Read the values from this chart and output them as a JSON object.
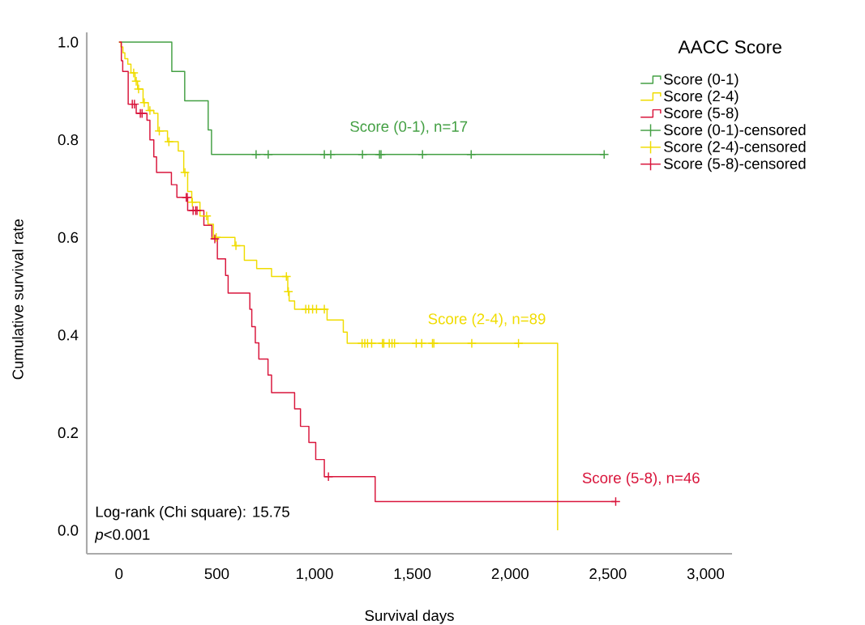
{
  "chart_data": {
    "type": "step",
    "xlabel": "Survival days",
    "ylabel": "Cumulative survival rate",
    "legend_title": "AACC Score",
    "xlim": [
      -165,
      3135
    ],
    "ylim": [
      -0.048,
      1.02
    ],
    "xticks": [
      0,
      500,
      {
        "value": 1000,
        "label": "1,000"
      },
      {
        "value": 1500,
        "label": "1,500"
      },
      {
        "value": 2000,
        "label": "2,000"
      },
      {
        "value": 2500,
        "label": "2,500"
      },
      {
        "value": 3000,
        "label": "3,000"
      }
    ],
    "yticks": [
      {
        "value": 0,
        "label": "0.0"
      },
      0.2,
      0.4,
      0.6,
      0.8,
      {
        "value": 1,
        "label": "1.0"
      }
    ],
    "grid": false,
    "legend": "top right",
    "series": [
      {
        "name": "Score (0-1)",
        "color": "#44a044",
        "x": [
          0,
          270,
          336,
          456,
          473,
          2481
        ],
        "values": [
          1.0,
          0.94,
          0.88,
          0.82,
          0.77,
          0.77
        ]
      },
      {
        "name": "Score (2-4)",
        "color": "#f0dc00",
        "x": [
          0,
          10,
          20,
          30,
          45,
          61,
          82,
          95,
          123,
          150,
          178,
          199,
          248,
          303,
          331,
          351,
          372,
          414,
          455,
          483,
          593,
          641,
          704,
          780,
          863,
          870,
          898,
          1064,
          1147,
          1167,
          2243
        ],
        "values": [
          1.0,
          0.99,
          0.978,
          0.966,
          0.955,
          0.937,
          0.92,
          0.904,
          0.876,
          0.86,
          0.854,
          0.818,
          0.796,
          0.777,
          0.733,
          0.694,
          0.672,
          0.644,
          0.627,
          0.6,
          0.583,
          0.553,
          0.536,
          0.52,
          0.489,
          0.47,
          0.453,
          0.431,
          0.406,
          0.383,
          0.0
        ]
      },
      {
        "name": "Score (5-8)",
        "color": "#d9163c",
        "x": [
          0,
          12,
          19,
          47,
          88,
          143,
          158,
          178,
          192,
          268,
          296,
          351,
          434,
          475,
          503,
          545,
          558,
          669,
          679,
          697,
          715,
          762,
          780,
          898,
          928,
          971,
          1006,
          1050,
          1310,
          2540
        ],
        "values": [
          1.0,
          0.962,
          0.94,
          0.873,
          0.854,
          0.84,
          0.8,
          0.765,
          0.733,
          0.708,
          0.682,
          0.655,
          0.625,
          0.597,
          0.556,
          0.522,
          0.486,
          0.453,
          0.417,
          0.384,
          0.351,
          0.318,
          0.282,
          0.249,
          0.213,
          0.18,
          0.145,
          0.11,
          0.059,
          0.059
        ]
      },
      {
        "name": "Score (0-1)-censored",
        "type": "scatter",
        "marker": "cross",
        "color": "#44a044",
        "x": [
          701,
          763,
          1050,
          1083,
          1245,
          1332,
          1340,
          1552,
          1801,
          2481
        ],
        "values": [
          0.77,
          0.77,
          0.77,
          0.77,
          0.77,
          0.77,
          0.77,
          0.77,
          0.77,
          0.77
        ]
      },
      {
        "name": "Score (2-4)-censored",
        "type": "scatter",
        "marker": "cross",
        "color": "#f0dc00",
        "x": [
          75,
          88,
          100,
          129,
          158,
          206,
          255,
          337,
          375,
          448,
          497,
          598,
          856,
          866,
          955,
          970,
          990,
          1010,
          1050,
          1243,
          1257,
          1271,
          1292,
          1347,
          1354,
          1382,
          1396,
          1409,
          1520,
          1548,
          1603,
          1610,
          1804,
          2043
        ],
        "values": [
          0.937,
          0.92,
          0.904,
          0.876,
          0.86,
          0.818,
          0.796,
          0.733,
          0.672,
          0.644,
          0.6,
          0.583,
          0.52,
          0.489,
          0.453,
          0.453,
          0.453,
          0.453,
          0.453,
          0.383,
          0.383,
          0.383,
          0.383,
          0.383,
          0.383,
          0.383,
          0.383,
          0.383,
          0.383,
          0.383,
          0.383,
          0.383,
          0.383,
          0.383
        ]
      },
      {
        "name": "Score (5-8)-censored",
        "type": "scatter",
        "marker": "cross",
        "color": "#d9163c",
        "x": [
          68,
          79,
          109,
          118,
          344,
          349,
          379,
          392,
          399,
          490,
          1071,
          2540
        ],
        "values": [
          0.873,
          0.873,
          0.854,
          0.854,
          0.682,
          0.682,
          0.655,
          0.655,
          0.655,
          0.597,
          0.11,
          0.059
        ]
      }
    ],
    "annotations": [
      "Score (0-1), n=17",
      "Score (2-4), n=89",
      "Score (5-8), n=46",
      "Log-rank (Chi square): 15.75",
      "*p*<0.001"
    ]
  }
}
